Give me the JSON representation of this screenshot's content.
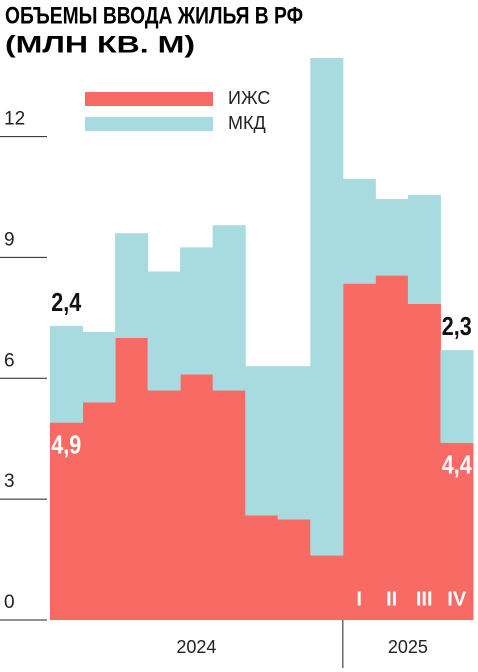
{
  "chart_data": {
    "type": "bar",
    "stacked": true,
    "title": "ОБЪЕМЫ ВВОДА ЖИЛЬЯ В РФ",
    "subtitle": "(МЛН КВ. М)",
    "categories": [
      null,
      null,
      null,
      null,
      null,
      null,
      null,
      null,
      null,
      "I",
      "II",
      "III",
      "IV"
    ],
    "groups": [
      {
        "label": "2024",
        "start": 0,
        "end": 8
      },
      {
        "label": "2025",
        "start": 9,
        "end": 12
      }
    ],
    "series": [
      {
        "name": "ИЖС",
        "color": "#f76b64",
        "values": [
          4.9,
          5.4,
          7.0,
          5.7,
          6.1,
          5.7,
          2.6,
          2.5,
          1.6,
          8.35,
          8.55,
          7.85,
          4.4
        ],
        "value_labels": [
          "4,9",
          null,
          null,
          null,
          null,
          null,
          null,
          null,
          null,
          null,
          null,
          null,
          "4,4"
        ]
      },
      {
        "name": "МКД",
        "color": "#a8dbe0",
        "values": [
          2.4,
          1.75,
          2.6,
          2.95,
          3.15,
          4.1,
          3.7,
          3.8,
          12.35,
          2.6,
          1.9,
          2.7,
          2.3
        ],
        "value_labels": [
          "2,4",
          null,
          null,
          null,
          null,
          null,
          null,
          null,
          null,
          null,
          null,
          null,
          "2,3"
        ]
      }
    ],
    "ylim": [
      0,
      14
    ],
    "yticks": [
      0,
      3,
      6,
      9,
      12
    ]
  }
}
